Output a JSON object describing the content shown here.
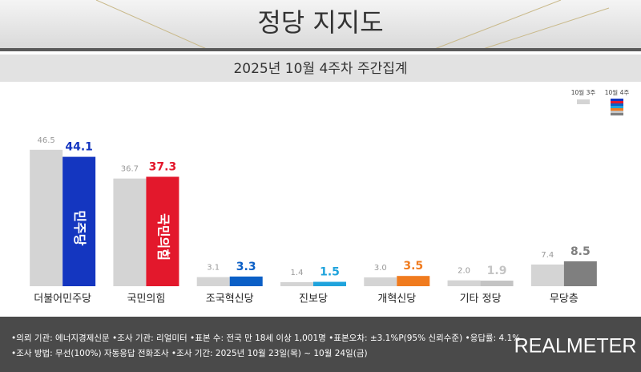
{
  "chart_data": {
    "type": "bar",
    "title": "정당 지지도",
    "subtitle": "2025년 10월 4주차 주간집계",
    "categories": [
      "더불어민주당",
      "국민의힘",
      "조국혁신당",
      "진보당",
      "개혁신당",
      "기타 정당",
      "무당층"
    ],
    "series": [
      {
        "name": "10월 3주",
        "color": "#d4d4d4",
        "values": [
          46.5,
          36.7,
          3.1,
          1.4,
          3.0,
          2.0,
          7.4
        ],
        "value_labels": [
          "46.5",
          "36.7",
          "3.1",
          "1.4",
          "3.0",
          "2.0",
          "7.4"
        ]
      },
      {
        "name": "10월 4주",
        "colors": [
          "#1436c0",
          "#e3182c",
          "#0b5fc6",
          "#1fa3dc",
          "#f07b1e",
          "#c4c4c4",
          "#7f7f7f"
        ],
        "values": [
          44.1,
          37.3,
          3.3,
          1.5,
          3.5,
          1.9,
          8.5
        ],
        "value_labels": [
          "44.1",
          "37.3",
          "3.3",
          "1.5",
          "3.5",
          "1.9",
          "8.5"
        ]
      }
    ],
    "bar_logos": [
      "민주당",
      "국민의힘",
      null,
      null,
      null,
      null,
      null
    ],
    "ylim": [
      0,
      50
    ],
    "footer": [
      "•의뢰 기관: 에너지경제신문  •조사 기관: 리얼미터  •표본 수: 전국 만 18세 이상 1,001명  •표본오차: ±3.1%P(95% 신뢰수준)  •응답률: 4.1%",
      "•조사 방법: 무선(100%) 자동응답 전화조사  •조사 기간: 2025년 10월 23일(목) ~ 10월 24일(금)"
    ],
    "brand": "REALMETER"
  }
}
